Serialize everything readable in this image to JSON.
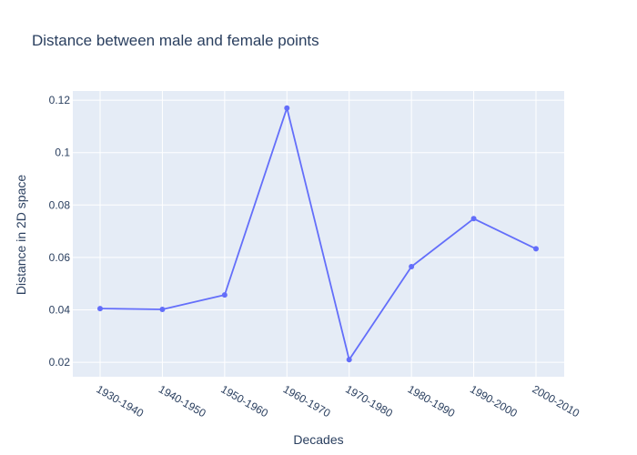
{
  "chart_data": {
    "type": "line",
    "title": "Distance between male and female points",
    "xlabel": "Decades",
    "ylabel": "Distance in 2D space",
    "categories": [
      "1930-1940",
      "1940-1950",
      "1950-1960",
      "1960-1970",
      "1970-1980",
      "1980-1990",
      "1990-2000",
      "2000-2010"
    ],
    "values": [
      0.0405,
      0.0402,
      0.0457,
      0.117,
      0.021,
      0.0565,
      0.0748,
      0.0633
    ],
    "ylim": [
      0.0145,
      0.1235
    ],
    "yticks": [
      0.02,
      0.04,
      0.06,
      0.08,
      0.1,
      0.12
    ],
    "ytick_labels": [
      "0.02",
      "0.04",
      "0.06",
      "0.08",
      "0.1",
      "0.12"
    ],
    "grid": true,
    "line_color": "#636efa",
    "plot_bg": "#e5ecf6",
    "grid_color": "#ffffff",
    "text_color": "#2a3f5f"
  }
}
